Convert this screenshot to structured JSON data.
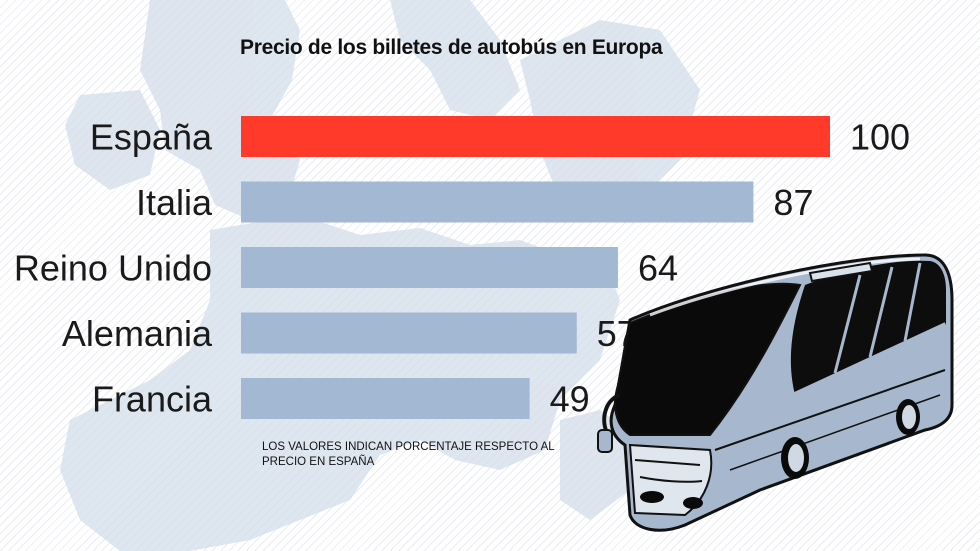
{
  "chart_data": {
    "type": "bar",
    "orientation": "horizontal",
    "title": "Precio de los billetes de autobús en Europa",
    "categories": [
      "España",
      "Italia",
      "Reino Unido",
      "Alemania",
      "Francia"
    ],
    "values": [
      100,
      87,
      64,
      57,
      49
    ],
    "value_labels": [
      "100",
      "87",
      "64",
      "57",
      "49"
    ],
    "xlim": [
      0,
      100
    ],
    "grid": false,
    "legend": "none",
    "note": "Los valores indican porcentaje respecto al precio en España",
    "colors": {
      "highlight": "#ff3a2a",
      "default": "#a3b8d2"
    }
  },
  "illustrations": {
    "background": "europe-map-icon",
    "foreground": "bus-icon"
  }
}
